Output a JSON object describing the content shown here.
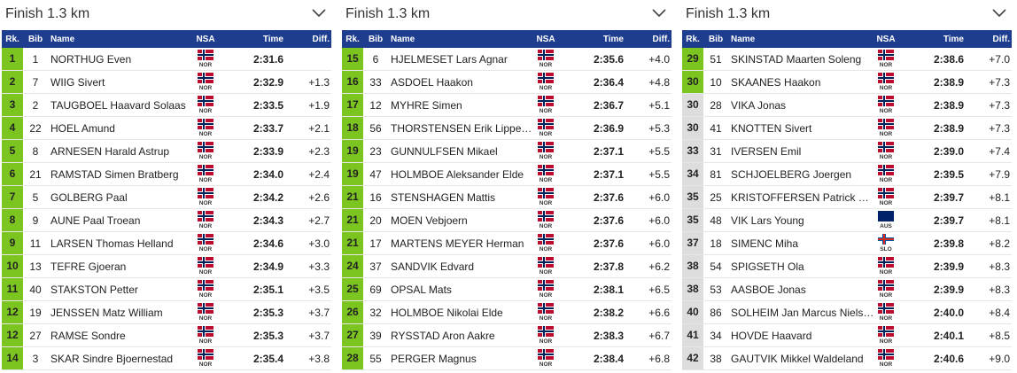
{
  "panels": [
    {
      "title": "Finish 1.3 km",
      "columns": [
        "Rk.",
        "Bib",
        "Name",
        "NSA",
        "Time",
        "Diff."
      ],
      "rank_colors": [
        "#7cc520",
        "#7cc520",
        "#7cc520",
        "#7cc520",
        "#7cc520",
        "#7cc520",
        "#7cc520",
        "#7cc520",
        "#7cc520",
        "#7cc520",
        "#7cc520",
        "#7cc520",
        "#7cc520",
        "#7cc520"
      ],
      "flag_colors": [
        [
          "#ba0c2f",
          "#ffffff",
          "#00205b"
        ],
        [
          "#ba0c2f",
          "#ffffff",
          "#00205b"
        ],
        [
          "#ba0c2f",
          "#ffffff",
          "#00205b"
        ],
        [
          "#ba0c2f",
          "#ffffff",
          "#00205b"
        ],
        [
          "#ba0c2f",
          "#ffffff",
          "#00205b"
        ],
        [
          "#ba0c2f",
          "#ffffff",
          "#00205b"
        ],
        [
          "#ba0c2f",
          "#ffffff",
          "#00205b"
        ],
        [
          "#ba0c2f",
          "#ffffff",
          "#00205b"
        ],
        [
          "#ba0c2f",
          "#ffffff",
          "#00205b"
        ],
        [
          "#ba0c2f",
          "#ffffff",
          "#00205b"
        ],
        [
          "#ba0c2f",
          "#ffffff",
          "#00205b"
        ],
        [
          "#ba0c2f",
          "#ffffff",
          "#00205b"
        ],
        [
          "#ba0c2f",
          "#ffffff",
          "#00205b"
        ],
        [
          "#ba0c2f",
          "#ffffff",
          "#00205b"
        ]
      ],
      "rows": [
        [
          1,
          1,
          "NORTHUG Even",
          "NOR",
          "2:31.6",
          null
        ],
        [
          2,
          7,
          "WIIG Sivert",
          "NOR",
          "2:32.9",
          "+1.3"
        ],
        [
          3,
          2,
          "TAUGBOEL Haavard Solaas",
          "NOR",
          "2:33.5",
          "+1.9"
        ],
        [
          4,
          22,
          "HOEL Amund",
          "NOR",
          "2:33.7",
          "+2.1"
        ],
        [
          5,
          8,
          "ARNESEN Harald Astrup",
          "NOR",
          "2:33.9",
          "+2.3"
        ],
        [
          6,
          21,
          "RAMSTAD Simen Bratberg",
          "NOR",
          "2:34.0",
          "+2.4"
        ],
        [
          7,
          5,
          "GOLBERG Paal",
          "NOR",
          "2:34.2",
          "+2.6"
        ],
        [
          8,
          9,
          "AUNE Paal Troean",
          "NOR",
          "2:34.3",
          "+2.7"
        ],
        [
          9,
          11,
          "LARSEN Thomas Helland",
          "NOR",
          "2:34.6",
          "+3.0"
        ],
        [
          10,
          13,
          "TEFRE Gjoeran",
          "NOR",
          "2:34.9",
          "+3.3"
        ],
        [
          11,
          40,
          "STAKSTON Petter",
          "NOR",
          "2:35.1",
          "+3.5"
        ],
        [
          12,
          19,
          "JENSSEN Matz William",
          "NOR",
          "2:35.3",
          "+3.7"
        ],
        [
          12,
          27,
          "RAMSE Sondre",
          "NOR",
          "2:35.3",
          "+3.7"
        ],
        [
          14,
          3,
          "SKAR Sindre Bjoernestad",
          "NOR",
          "2:35.4",
          "+3.8"
        ]
      ]
    },
    {
      "title": "Finish 1.3 km",
      "columns": [
        "Rk.",
        "Bib",
        "Name",
        "NSA",
        "Time",
        "Diff."
      ],
      "rank_colors": [
        "#7cc520",
        "#7cc520",
        "#7cc520",
        "#7cc520",
        "#7cc520",
        "#7cc520",
        "#7cc520",
        "#7cc520",
        "#7cc520",
        "#7cc520",
        "#7cc520",
        "#7cc520",
        "#7cc520",
        "#7cc520"
      ],
      "flag_colors": [
        [
          "#ba0c2f",
          "#ffffff",
          "#00205b"
        ],
        [
          "#ba0c2f",
          "#ffffff",
          "#00205b"
        ],
        [
          "#ba0c2f",
          "#ffffff",
          "#00205b"
        ],
        [
          "#ba0c2f",
          "#ffffff",
          "#00205b"
        ],
        [
          "#ba0c2f",
          "#ffffff",
          "#00205b"
        ],
        [
          "#ba0c2f",
          "#ffffff",
          "#00205b"
        ],
        [
          "#ba0c2f",
          "#ffffff",
          "#00205b"
        ],
        [
          "#ba0c2f",
          "#ffffff",
          "#00205b"
        ],
        [
          "#ba0c2f",
          "#ffffff",
          "#00205b"
        ],
        [
          "#ba0c2f",
          "#ffffff",
          "#00205b"
        ],
        [
          "#ba0c2f",
          "#ffffff",
          "#00205b"
        ],
        [
          "#ba0c2f",
          "#ffffff",
          "#00205b"
        ],
        [
          "#ba0c2f",
          "#ffffff",
          "#00205b"
        ],
        [
          "#ba0c2f",
          "#ffffff",
          "#00205b"
        ]
      ],
      "rows": [
        [
          15,
          6,
          "HJELMESET Lars Agnar",
          "NOR",
          "2:35.6",
          "+4.0"
        ],
        [
          16,
          33,
          "ASDOEL Haakon",
          "NOR",
          "2:36.4",
          "+4.8"
        ],
        [
          17,
          12,
          "MYHRE Simen",
          "NOR",
          "2:36.7",
          "+5.1"
        ],
        [
          18,
          56,
          "THORSTENSEN Erik Lippe…",
          "NOR",
          "2:36.9",
          "+5.3"
        ],
        [
          19,
          23,
          "GUNNULFSEN Mikael",
          "NOR",
          "2:37.1",
          "+5.5"
        ],
        [
          19,
          47,
          "HOLMBOE Aleksander Elde",
          "NOR",
          "2:37.1",
          "+5.5"
        ],
        [
          21,
          16,
          "STENSHAGEN Mattis",
          "NOR",
          "2:37.6",
          "+6.0"
        ],
        [
          21,
          20,
          "MOEN Vebjoern",
          "NOR",
          "2:37.6",
          "+6.0"
        ],
        [
          21,
          17,
          "MARTENS MEYER Herman",
          "NOR",
          "2:37.6",
          "+6.0"
        ],
        [
          24,
          37,
          "SANDVIK Edvard",
          "NOR",
          "2:37.8",
          "+6.2"
        ],
        [
          25,
          69,
          "OPSAL Mats",
          "NOR",
          "2:38.1",
          "+6.5"
        ],
        [
          26,
          32,
          "HOLMBOE Nikolai Elde",
          "NOR",
          "2:38.2",
          "+6.6"
        ],
        [
          27,
          39,
          "RYSSTAD Aron Aakre",
          "NOR",
          "2:38.3",
          "+6.7"
        ],
        [
          28,
          55,
          "PERGER Magnus",
          "NOR",
          "2:38.4",
          "+6.8"
        ]
      ]
    },
    {
      "title": "Finish 1.3 km",
      "columns": [
        "Rk.",
        "Bib",
        "Name",
        "NSA",
        "Time",
        "Diff."
      ],
      "rank_colors": [
        "#7cc520",
        "#7cc520",
        "#dddddd",
        "#dddddd",
        "#dddddd",
        "#dddddd",
        "#dddddd",
        "#dddddd",
        "#dddddd",
        "#dddddd",
        "#dddddd",
        "#dddddd",
        "#dddddd",
        "#dddddd"
      ],
      "flag_colors": [
        [
          "#ba0c2f",
          "#ffffff",
          "#00205b"
        ],
        [
          "#ba0c2f",
          "#ffffff",
          "#00205b"
        ],
        [
          "#ba0c2f",
          "#ffffff",
          "#00205b"
        ],
        [
          "#ba0c2f",
          "#ffffff",
          "#00205b"
        ],
        [
          "#ba0c2f",
          "#ffffff",
          "#00205b"
        ],
        [
          "#ba0c2f",
          "#ffffff",
          "#00205b"
        ],
        [
          "#ba0c2f",
          "#ffffff",
          "#00205b"
        ],
        [
          "#012169",
          "#012169",
          "#012169"
        ],
        [
          "#ffffff",
          "#0057a8",
          "#d52b1e"
        ],
        [
          "#ba0c2f",
          "#ffffff",
          "#00205b"
        ],
        [
          "#ba0c2f",
          "#ffffff",
          "#00205b"
        ],
        [
          "#ba0c2f",
          "#ffffff",
          "#00205b"
        ],
        [
          "#ba0c2f",
          "#ffffff",
          "#00205b"
        ],
        [
          "#ba0c2f",
          "#ffffff",
          "#00205b"
        ]
      ],
      "rows": [
        [
          29,
          51,
          "SKINSTAD Maarten Soleng",
          "NOR",
          "2:38.6",
          "+7.0"
        ],
        [
          30,
          10,
          "SKAANES Haakon",
          "NOR",
          "2:38.9",
          "+7.3"
        ],
        [
          30,
          28,
          "VIKA Jonas",
          "NOR",
          "2:38.9",
          "+7.3"
        ],
        [
          30,
          41,
          "KNOTTEN Sivert",
          "NOR",
          "2:38.9",
          "+7.3"
        ],
        [
          33,
          31,
          "IVERSEN Emil",
          "NOR",
          "2:39.0",
          "+7.4"
        ],
        [
          34,
          81,
          "SCHJOELBERG Joergen",
          "NOR",
          "2:39.5",
          "+7.9"
        ],
        [
          35,
          25,
          "KRISTOFFERSEN Patrick …",
          "NOR",
          "2:39.7",
          "+8.1"
        ],
        [
          35,
          48,
          "VIK Lars Young",
          "AUS",
          "2:39.7",
          "+8.1"
        ],
        [
          37,
          18,
          "SIMENC Miha",
          "SLO",
          "2:39.8",
          "+8.2"
        ],
        [
          38,
          54,
          "SPIGSETH Ola",
          "NOR",
          "2:39.9",
          "+8.3"
        ],
        [
          38,
          53,
          "AASBOE Jonas",
          "NOR",
          "2:39.9",
          "+8.3"
        ],
        [
          40,
          86,
          "SOLHEIM Jan Marcus Niels…",
          "NOR",
          "2:40.0",
          "+8.4"
        ],
        [
          41,
          34,
          "HOVDE Haavard",
          "NOR",
          "2:40.1",
          "+8.5"
        ],
        [
          42,
          38,
          "GAUTVIK Mikkel Waldeland",
          "NOR",
          "2:40.6",
          "+9.0"
        ]
      ]
    }
  ]
}
